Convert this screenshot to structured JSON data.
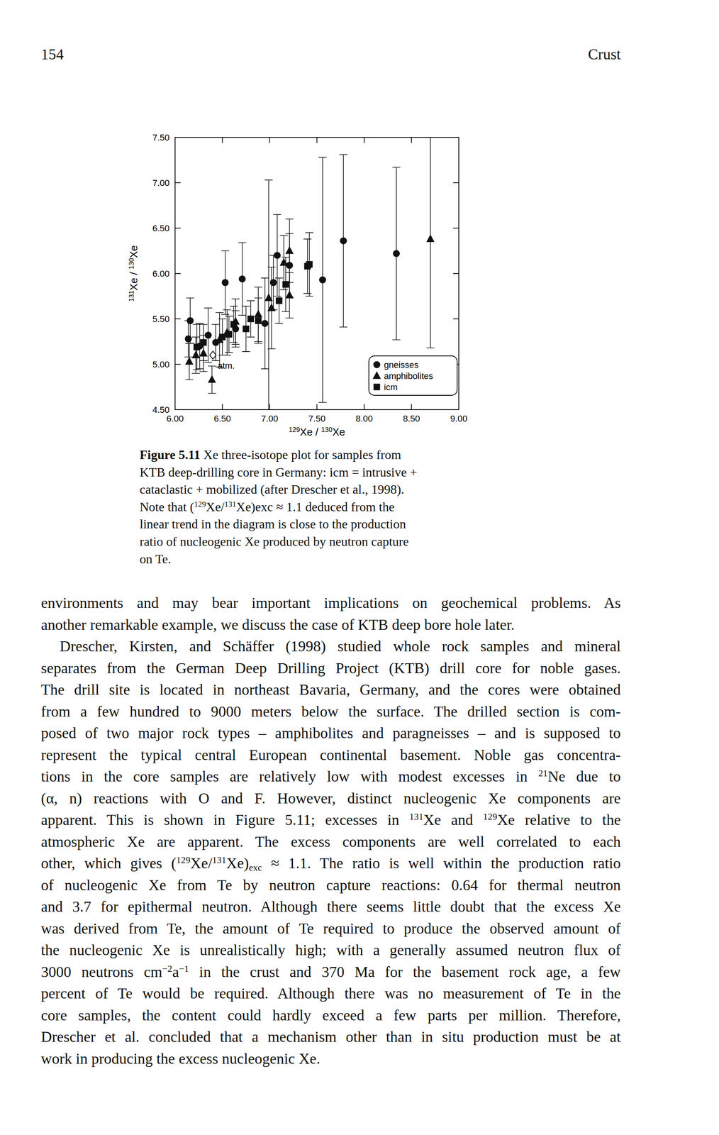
{
  "header": {
    "page_number": "154",
    "running_title": "Crust"
  },
  "chart_data": {
    "type": "scatter",
    "x_label": [
      {
        "sup": "129"
      },
      "Xe / ",
      {
        "sup": "130"
      },
      "Xe"
    ],
    "y_label": [
      {
        "sup": "131"
      },
      "Xe / ",
      {
        "sup": "130"
      },
      "Xe"
    ],
    "xlim": [
      6.0,
      9.0
    ],
    "ylim": [
      4.5,
      7.5
    ],
    "xticks": [
      {
        "value": 6.0,
        "label": "6.00"
      },
      {
        "value": 6.5,
        "label": "6.50"
      },
      {
        "value": 7.0,
        "label": "7.00"
      },
      {
        "value": 7.5,
        "label": "7.50"
      },
      {
        "value": 8.0,
        "label": "8.00"
      },
      {
        "value": 8.5,
        "label": "8.50"
      },
      {
        "value": 9.0,
        "label": "9.00"
      }
    ],
    "yticks": [
      {
        "value": 4.5,
        "label": "4.50"
      },
      {
        "value": 5.0,
        "label": "5.00"
      },
      {
        "value": 5.5,
        "label": "5.50"
      },
      {
        "value": 6.0,
        "label": "6.00"
      },
      {
        "value": 6.5,
        "label": "6.50"
      },
      {
        "value": 7.0,
        "label": "7.00"
      },
      {
        "value": 7.5,
        "label": "7.50"
      }
    ],
    "grid": false,
    "legend": "lower right",
    "series": [
      {
        "name": "gneisses",
        "marker": "circle",
        "color": "#111111",
        "x": [
          7.78,
          8.34,
          6.53,
          6.71,
          7.04,
          7.08,
          7.21,
          6.16,
          6.14,
          6.26,
          6.64,
          6.43,
          6.95,
          6.35,
          7.56
        ],
        "values": [
          6.36,
          6.22,
          5.9,
          5.94,
          5.9,
          6.2,
          6.09,
          5.48,
          5.28,
          5.2,
          5.39,
          5.24,
          5.45,
          5.32,
          5.93
        ],
        "errors": [
          0.95,
          0.95,
          0.35,
          0.4,
          0.3,
          0.45,
          0.35,
          0.25,
          0.2,
          0.25,
          0.2,
          0.2,
          0.5,
          0.3,
          1.35
        ]
      },
      {
        "name": "amphibolites",
        "marker": "triangle",
        "color": "#111111",
        "x": [
          8.7,
          7.21,
          7.15,
          7.21,
          6.99,
          6.15,
          6.39,
          6.64,
          6.88,
          6.47,
          6.3,
          7.02,
          6.55,
          6.22
        ],
        "values": [
          6.38,
          6.25,
          6.12,
          5.76,
          5.73,
          5.03,
          4.83,
          5.47,
          5.55,
          5.27,
          5.12,
          5.62,
          5.35,
          5.1
        ],
        "errors": [
          1.2,
          0.35,
          0.3,
          0.25,
          1.3,
          0.2,
          0.15,
          0.25,
          0.3,
          0.3,
          0.2,
          0.45,
          0.25,
          0.2
        ]
      },
      {
        "name": "icm",
        "marker": "square",
        "color": "#111111",
        "x": [
          7.42,
          6.23,
          6.57,
          6.8,
          6.75,
          6.5,
          7.17,
          7.4,
          6.88,
          6.3,
          6.62,
          7.1
        ],
        "values": [
          6.1,
          5.19,
          5.33,
          5.5,
          5.39,
          5.3,
          5.88,
          6.08,
          5.48,
          5.24,
          5.44,
          5.7
        ],
        "errors": [
          0.35,
          0.25,
          0.2,
          0.2,
          0.25,
          0.2,
          0.3,
          0.3,
          0.25,
          0.2,
          0.2,
          0.25
        ]
      }
    ],
    "annotation": {
      "label": "atm.",
      "x": 6.4,
      "y": 5.1,
      "marker": "diamond"
    }
  },
  "caption": {
    "lines": [
      [
        {
          "b": "Figure 5.11"
        },
        "  Xe three-isotope plot for samples from"
      ],
      [
        "KTB deep-drilling core in Germany: icm = intrusive +"
      ],
      [
        "cataclastic + mobilized (after Drescher et al., 1998)."
      ],
      [
        "Note that (",
        {
          "sup": "129"
        },
        "Xe/",
        {
          "sup": "131"
        },
        "Xe)exc ≈ 1.1 deduced from the"
      ],
      [
        "linear trend in the diagram is close to the production"
      ],
      [
        "ratio of nucleogenic Xe produced by neutron capture"
      ],
      [
        "on Te."
      ]
    ]
  },
  "body": {
    "paragraphs": [
      {
        "lines": [
          [
            "environments and may bear important implications on geochemical problems. As"
          ],
          [
            "another remarkable example, we discuss the case of KTB deep bore hole later."
          ]
        ]
      },
      {
        "lines": [
          [
            "Drescher, Kirsten, and Schäffer (1998) studied whole rock samples and mineral"
          ],
          [
            "separates from the German Deep Drilling Project (KTB) drill core for noble gases."
          ],
          [
            "The drill site is located in northeast Bavaria, Germany, and the cores were obtained"
          ],
          [
            "from a few hundred to 9000 meters below the surface. The drilled section is com-"
          ],
          [
            "posed of two major rock types – amphibolites and paragneisses – and is supposed to"
          ],
          [
            "represent the typical central European continental basement. Noble gas concentra-"
          ],
          [
            "tions in the core samples are relatively low with modest excesses in ",
            {
              "sup": "21"
            },
            "Ne due to"
          ],
          [
            "(α, n) reactions with O and F. However, distinct nucleogenic Xe components are"
          ],
          [
            "apparent. This is shown in Figure 5.11; excesses in ",
            {
              "sup": "131"
            },
            "Xe and ",
            {
              "sup": "129"
            },
            "Xe relative to the"
          ],
          [
            "atmospheric Xe are apparent. The excess components are well correlated to each"
          ],
          [
            "other, which gives (",
            {
              "sup": "129"
            },
            "Xe/",
            {
              "sup": "131"
            },
            "Xe)",
            {
              "sub": "exc"
            },
            " ≈ 1.1. The ratio is well within the production ratio"
          ],
          [
            "of nucleogenic Xe from Te by neutron capture reactions: 0.64 for thermal neutron"
          ],
          [
            "and 3.7 for epithermal neutron. Although there seems little doubt that the excess Xe"
          ],
          [
            "was derived from Te, the amount of Te required to produce the observed amount of"
          ],
          [
            "the nucleogenic Xe is unrealistically high; with a generally assumed neutron flux of"
          ],
          [
            "3000 neutrons cm",
            {
              "sup": "−2"
            },
            "a",
            {
              "sup": "−1"
            },
            " in the crust and 370 Ma for the basement rock age, a few"
          ],
          [
            "percent of Te would be required. Although there was no measurement of Te in the"
          ],
          [
            "core samples, the content could hardly exceed a few parts per million. Therefore,"
          ],
          [
            "Drescher et al. concluded that a mechanism other than in situ production must be at"
          ],
          [
            "work in producing the excess nucleogenic Xe."
          ]
        ]
      }
    ]
  }
}
